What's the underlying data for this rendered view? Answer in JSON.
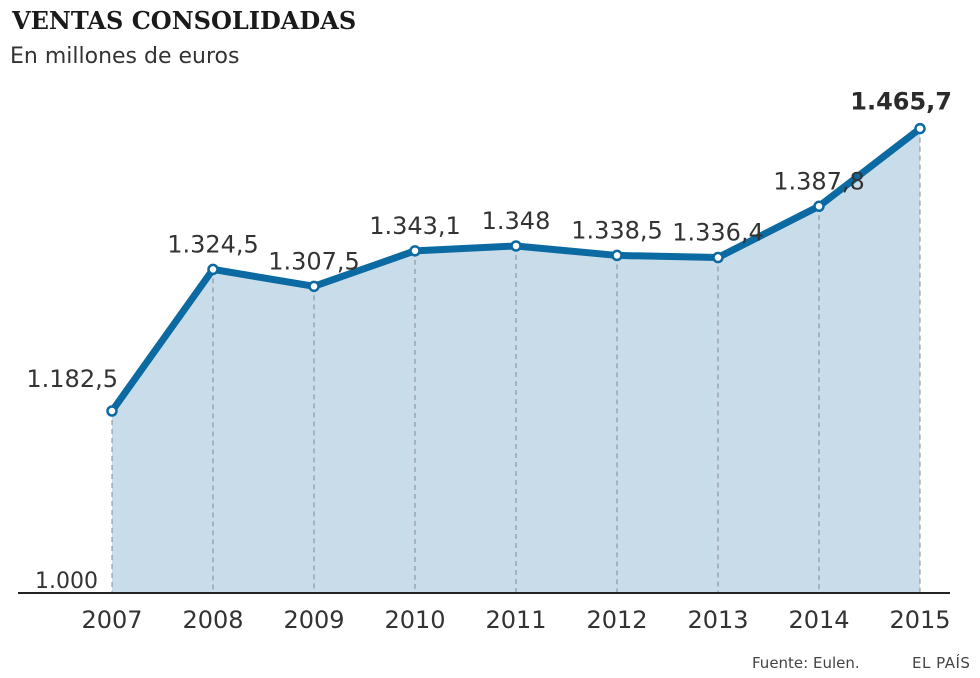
{
  "chart_data": {
    "type": "area",
    "title": "VENTAS CONSOLIDADAS",
    "subtitle": "En millones de euros",
    "categories": [
      "2007",
      "2008",
      "2009",
      "2010",
      "2011",
      "2012",
      "2013",
      "2014",
      "2015"
    ],
    "series": [
      {
        "values": [
          1182.5,
          1324.5,
          1307.5,
          1343.1,
          1348,
          1338.5,
          1336.4,
          1387.8,
          1465.7
        ],
        "labels": [
          "1.182,5",
          "1.324,5",
          "1.307,5",
          "1.343,1",
          "1.348",
          "1.338,5",
          "1.336,4",
          "1.387,8",
          "1.465,7"
        ]
      }
    ],
    "baseline_label": "1.000",
    "ylim": [
      1000,
      1465.7
    ],
    "colors": {
      "line": "#0a6aa1",
      "fill": "#c9dcea",
      "axis": "#222222",
      "dash": "#888888"
    },
    "source": "Fuente: Eulen.",
    "brand": "EL PAÍS"
  }
}
